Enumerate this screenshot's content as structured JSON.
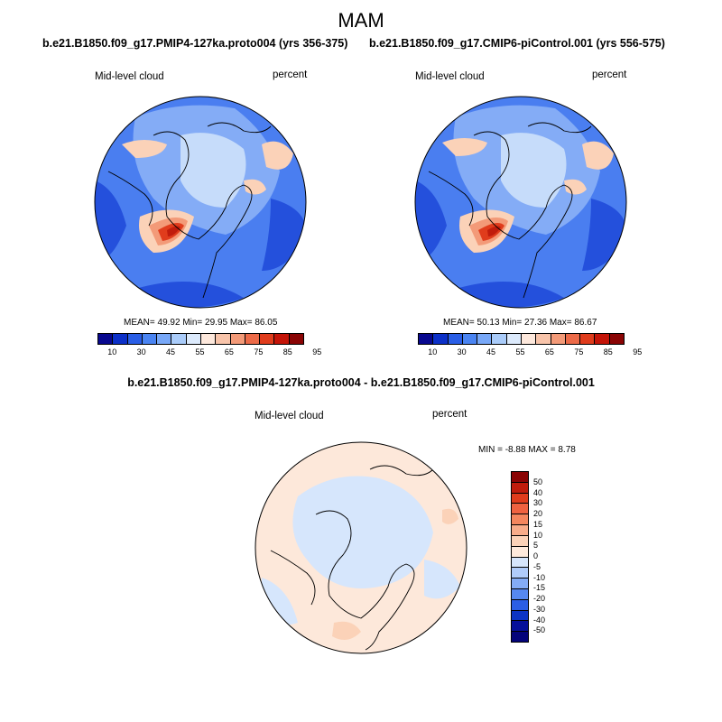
{
  "figure": {
    "season": "MAM",
    "diff_title": "b.e21.B1850.f09_g17.PMIP4-127ka.proto004 - b.e21.B1850.f09_g17.CMIP6-piControl.001"
  },
  "panels": [
    {
      "title": "b.e21.B1850.f09_g17.PMIP4-127ka.proto004 (yrs 356-375)",
      "variable": "Mid-level cloud",
      "units": "percent",
      "stats": "MEAN=  49.92  Min=  29.95  Max=  86.05"
    },
    {
      "title": "b.e21.B1850.f09_g17.CMIP6-piControl.001 (yrs 556-575)",
      "variable": "Mid-level cloud",
      "units": "percent",
      "stats": "MEAN=  50.13  Min=  27.36  Max=  86.67"
    }
  ],
  "diff_panel": {
    "variable": "Mid-level cloud",
    "units": "percent",
    "stats": "MIN =  -8.88 MAX =   8.78"
  },
  "colorbar": {
    "labels": [
      "10",
      "30",
      "45",
      "55",
      "65",
      "75",
      "85",
      "95"
    ],
    "colors": [
      "#08088f",
      "#0c30c8",
      "#2a5ee6",
      "#4a84f2",
      "#78a8f8",
      "#aaccfa",
      "#dceafc",
      "#fde8dc",
      "#f8c4aa",
      "#f39a78",
      "#ec6a48",
      "#e03c1c",
      "#c41408",
      "#8a0404"
    ]
  },
  "diff_colorbar": {
    "labels": [
      "50",
      "40",
      "30",
      "20",
      "15",
      "10",
      "5",
      "0",
      "-5",
      "-10",
      "-15",
      "-20",
      "-30",
      "-40",
      "-50"
    ],
    "colors": [
      "#8a0404",
      "#c01c0c",
      "#e03c1c",
      "#ef6240",
      "#f4865e",
      "#f8ac8a",
      "#fbd2b8",
      "#feeadc",
      "#d6e6fc",
      "#b0ccfa",
      "#84acf6",
      "#5688f0",
      "#2c5ee4",
      "#0c34c4",
      "#06109a",
      "#04047a"
    ]
  },
  "map_colors": {
    "blue_dark": "#2450dc",
    "blue_mid": "#4a7ef0",
    "blue_light": "#84acf6",
    "blue_pale": "#c6dcfa",
    "peach": "#fbd2b8",
    "salmon": "#f39a78",
    "red": "#e03c1c",
    "red_dark": "#c01c0c",
    "diff_base": "#fde8da",
    "diff_blue": "#d6e6fc"
  }
}
